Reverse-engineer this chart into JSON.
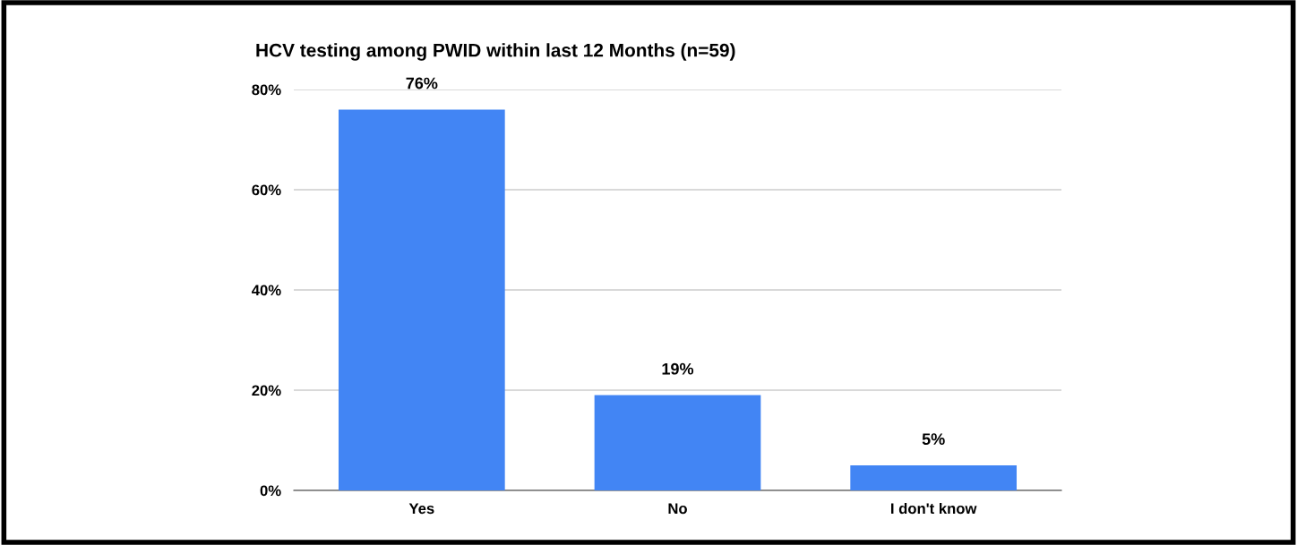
{
  "chart_data": {
    "type": "bar",
    "title": "HCV testing among PWID within last 12 Months (n=59)",
    "categories": [
      "Yes",
      "No",
      "I don't know"
    ],
    "values": [
      76,
      19,
      5
    ],
    "value_labels": [
      "76%",
      "19%",
      "5%"
    ],
    "color": "#4285f4",
    "ylim": [
      0,
      80
    ],
    "yticks": [
      {
        "value": 0,
        "label": "0%"
      },
      {
        "value": 20,
        "label": "20%"
      },
      {
        "value": 40,
        "label": "40%"
      },
      {
        "value": 60,
        "label": "60%"
      },
      {
        "value": 80,
        "label": "80%"
      }
    ],
    "grid": "y",
    "legend": false
  }
}
